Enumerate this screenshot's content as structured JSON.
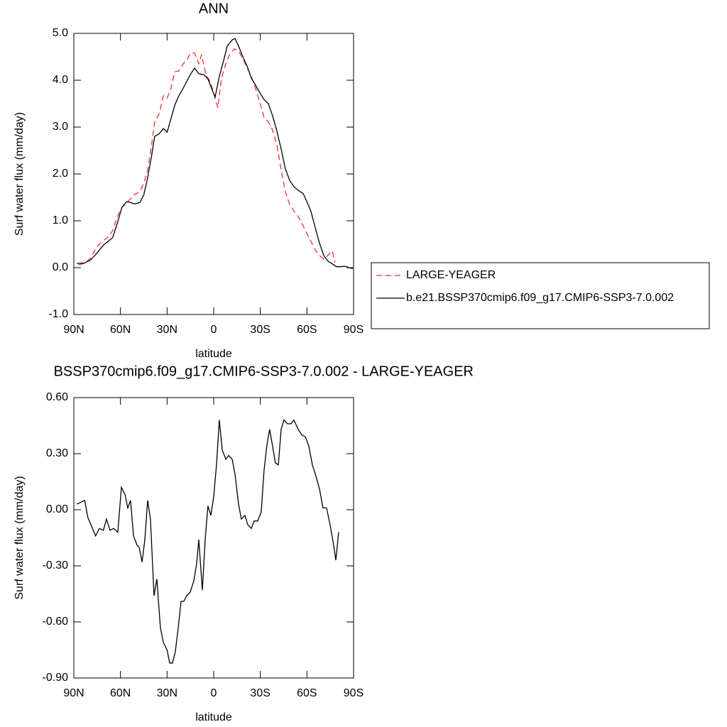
{
  "chart_data": [
    {
      "type": "line",
      "title": "ANN",
      "xlabel": "latitude",
      "ylabel": "Surf water flux (mm/day)",
      "xlim": [
        90,
        -90
      ],
      "xticks": [
        {
          "value": 90,
          "label": "90N"
        },
        {
          "value": 60,
          "label": "60N"
        },
        {
          "value": 30,
          "label": "30N"
        },
        0,
        {
          "value": -30,
          "label": "30S"
        },
        {
          "value": -60,
          "label": "60S"
        },
        {
          "value": -90,
          "label": "90S"
        }
      ],
      "ylim": [
        -1,
        5
      ],
      "yticks": [
        {
          "value": -1,
          "label": "-1.0"
        },
        {
          "value": 0,
          "label": "0.0"
        },
        {
          "value": 1,
          "label": "1.0"
        },
        {
          "value": 2,
          "label": "2.0"
        },
        {
          "value": 3,
          "label": "3.0"
        },
        {
          "value": 4,
          "label": "4.0"
        },
        {
          "value": 5,
          "label": "5.0"
        }
      ],
      "grid": false,
      "legend": "right",
      "series": [
        {
          "name": "LARGE-YEAGER",
          "color": "#f03030",
          "line_style": "dashed",
          "x": [
            87,
            83,
            79,
            75.4,
            71,
            68,
            65,
            62,
            59,
            56,
            53.5,
            51,
            47.5,
            45,
            42.5,
            40,
            38,
            35,
            32.4,
            30,
            28,
            25,
            22.4,
            19.6,
            17,
            15,
            12.3,
            9.6,
            7.8,
            5,
            2.3,
            -0.5,
            -2.7,
            -5,
            -7.8,
            -10,
            -13.2,
            -16,
            -18.7,
            -21.5,
            -24.2,
            -27,
            -29.7,
            -32.4,
            -35.2,
            -37.9,
            -40.7,
            -43.4,
            -46.1,
            -48.9,
            -51.6,
            -54.4,
            -57.6,
            -59.8,
            -62.6,
            -65.3,
            -68.1,
            -70.8,
            -73.5,
            -76.3,
            -78
          ],
          "values": [
            0.06,
            0.09,
            0.21,
            0.44,
            0.58,
            0.65,
            0.79,
            1.09,
            1.29,
            1.38,
            1.47,
            1.56,
            1.62,
            1.8,
            2.08,
            2.61,
            3.11,
            3.29,
            3.67,
            3.62,
            3.77,
            4.18,
            4.2,
            4.35,
            4.45,
            4.58,
            4.58,
            4.35,
            4.55,
            4.12,
            3.97,
            3.67,
            3.41,
            4.05,
            4.35,
            4.53,
            4.67,
            4.62,
            4.47,
            4.27,
            4.08,
            3.82,
            3.52,
            3.21,
            3.11,
            2.94,
            2.61,
            2.08,
            1.62,
            1.35,
            1.21,
            1.09,
            0.89,
            0.74,
            0.56,
            0.38,
            0.26,
            0.18,
            0.26,
            0.36,
            0.11
          ]
        },
        {
          "name": "b.e21.BSSP370cmip6.f09_g17.CMIP6-SSP3-7.0.002",
          "color": "#000000",
          "line_style": "solid",
          "x": [
            88,
            83,
            79,
            75.4,
            71,
            68,
            65,
            62,
            59,
            56,
            53.5,
            51,
            47.5,
            45,
            42.5,
            40,
            38,
            35,
            32.4,
            30,
            28,
            25,
            22.4,
            19.6,
            17,
            15,
            12.3,
            9.6,
            6.4,
            3.7,
            1.4,
            -0.9,
            -3.6,
            -6.4,
            -8.7,
            -11.9,
            -13.7,
            -16,
            -18.7,
            -21.5,
            -24.2,
            -27,
            -29.7,
            -32.4,
            -35.2,
            -37.9,
            -40.7,
            -43.4,
            -46.1,
            -48.9,
            -51.6,
            -54.4,
            -57.6,
            -59.8,
            -62.6,
            -65.3,
            -68.1,
            -70.8,
            -73.5,
            -76.3,
            -79,
            -81.8,
            -84.5,
            -87.3,
            -89.5
          ],
          "values": [
            0.09,
            0.1,
            0.17,
            0.3,
            0.48,
            0.56,
            0.64,
            0.95,
            1.29,
            1.41,
            1.39,
            1.36,
            1.39,
            1.55,
            1.92,
            2.38,
            2.8,
            2.86,
            2.97,
            2.89,
            3.12,
            3.47,
            3.67,
            3.83,
            4.0,
            4.12,
            4.26,
            4.14,
            4.12,
            4.03,
            3.83,
            3.64,
            4.08,
            4.42,
            4.73,
            4.86,
            4.89,
            4.73,
            4.5,
            4.3,
            4.05,
            3.89,
            3.73,
            3.59,
            3.5,
            3.24,
            2.91,
            2.53,
            2.11,
            1.86,
            1.73,
            1.65,
            1.58,
            1.42,
            1.2,
            0.86,
            0.52,
            0.26,
            0.14,
            0.08,
            0.02,
            0.02,
            0.03,
            0.0,
            -0.02
          ]
        }
      ]
    },
    {
      "type": "line",
      "title": "BSSP370cmip6.f09_g17.CMIP6-SSP3-7.0.002 - LARGE-YEAGER",
      "xlabel": "latitude",
      "ylabel": "Surf water flux (mm/day)",
      "xlim": [
        90,
        -90
      ],
      "xticks": [
        {
          "value": 90,
          "label": "90N"
        },
        {
          "value": 60,
          "label": "60N"
        },
        {
          "value": 30,
          "label": "30N"
        },
        0,
        {
          "value": -30,
          "label": "30S"
        },
        {
          "value": -60,
          "label": "60S"
        },
        {
          "value": -90,
          "label": "90S"
        }
      ],
      "ylim": [
        -0.9,
        0.6
      ],
      "yticks": [
        {
          "value": -0.9,
          "label": "-0.90"
        },
        {
          "value": -0.6,
          "label": "-0.60"
        },
        {
          "value": -0.3,
          "label": "-0.30"
        },
        {
          "value": 0,
          "label": "0.00"
        },
        {
          "value": 0.3,
          "label": "0.30"
        },
        {
          "value": 0.6,
          "label": "0.60"
        }
      ],
      "grid": false,
      "color": "#000000",
      "x": [
        88,
        83,
        81,
        78,
        76,
        73.6,
        71,
        69,
        66.7,
        64.4,
        61.7,
        59.4,
        57,
        55.3,
        53.5,
        51.6,
        49.3,
        48,
        46.1,
        44.3,
        42.5,
        40.7,
        38.4,
        36.6,
        34.3,
        32.4,
        30,
        28.3,
        26.5,
        24.7,
        22.8,
        21,
        19.2,
        17.4,
        15.1,
        12.8,
        11,
        9.6,
        7.3,
        5.5,
        3.7,
        1.8,
        0,
        -1.8,
        -3.6,
        -5.5,
        -7.8,
        -9.6,
        -11.9,
        -13.7,
        -16,
        -17.8,
        -20.1,
        -21.9,
        -24.2,
        -26,
        -28.3,
        -30.6,
        -32.4,
        -34.3,
        -36,
        -37.9,
        -39.7,
        -41.6,
        -43.4,
        -45.2,
        -47.5,
        -49.8,
        -51.6,
        -54.4,
        -56.7,
        -59,
        -61.2,
        -63.5,
        -65.8,
        -68.1,
        -70.3,
        -72.6,
        -74.9,
        -77.2,
        -78.6,
        -80.4
      ],
      "values": [
        0.03,
        0.05,
        -0.04,
        -0.1,
        -0.14,
        -0.1,
        -0.11,
        -0.05,
        -0.11,
        -0.1,
        -0.12,
        0.12,
        0.08,
        0.01,
        0.05,
        -0.14,
        -0.19,
        -0.2,
        -0.28,
        -0.16,
        0.05,
        -0.05,
        -0.46,
        -0.37,
        -0.63,
        -0.71,
        -0.75,
        -0.82,
        -0.82,
        -0.76,
        -0.63,
        -0.49,
        -0.49,
        -0.46,
        -0.44,
        -0.38,
        -0.29,
        -0.16,
        -0.43,
        -0.16,
        0.02,
        -0.03,
        0.07,
        0.24,
        0.48,
        0.32,
        0.27,
        0.29,
        0.27,
        0.19,
        0.03,
        -0.05,
        -0.03,
        -0.08,
        -0.1,
        -0.06,
        -0.06,
        -0.01,
        0.21,
        0.35,
        0.43,
        0.34,
        0.25,
        0.24,
        0.43,
        0.48,
        0.46,
        0.46,
        0.48,
        0.43,
        0.4,
        0.39,
        0.34,
        0.24,
        0.18,
        0.11,
        0.01,
        0.01,
        -0.08,
        -0.19,
        -0.27,
        -0.12
      ]
    }
  ]
}
